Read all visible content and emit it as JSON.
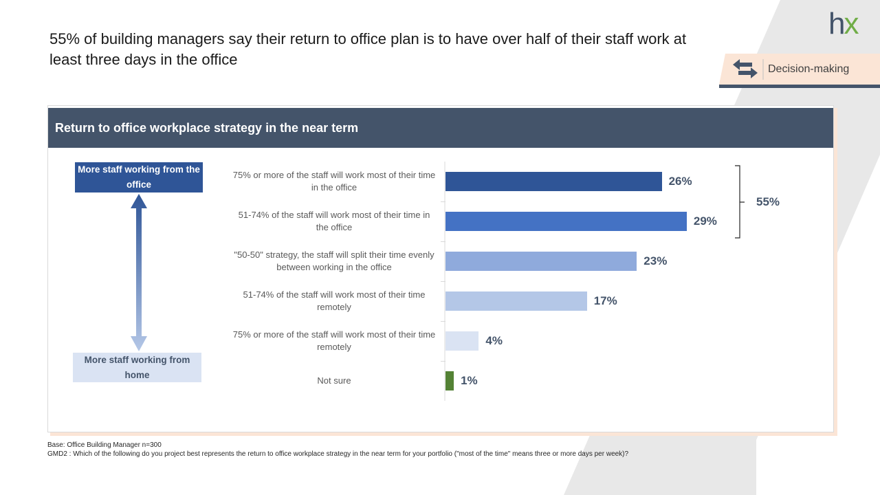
{
  "title": "55% of building managers say their return to office plan is to have over half of their staff work at least three days in the office",
  "logo": {
    "left": "h",
    "right": "x"
  },
  "badge": "Decision-making",
  "chart_data": {
    "type": "bar",
    "orientation": "horizontal",
    "title": "Return to office workplace strategy in the near term",
    "categories": [
      "75% or more of the staff will work most of their time in the office",
      "51-74% of the staff will work most of their time in the office",
      "\"50-50\" strategy, the staff will split their time evenly between working in the office",
      "51-74% of the staff will work most of their time remotely",
      "75% or more of the staff will work most of their time remotely",
      "Not sure"
    ],
    "values": [
      26,
      29,
      23,
      17,
      4,
      1
    ],
    "value_labels": [
      "26%",
      "29%",
      "23%",
      "17%",
      "4%",
      "1%"
    ],
    "colors": [
      "#2f5597",
      "#4472c4",
      "#8faadc",
      "#b4c7e7",
      "#dae3f3",
      "#548235"
    ],
    "annotations": {
      "top": "More staff working from the office",
      "bottom": "More staff working from home",
      "bracket": "55%"
    }
  },
  "footnotes": [
    "Base: Office Building Manager n=300",
    "GMD2 : Which of the following do you project best represents the return to office workplace strategy in the near term for your portfolio (\"most of the time\" means three or more days per week)?"
  ]
}
